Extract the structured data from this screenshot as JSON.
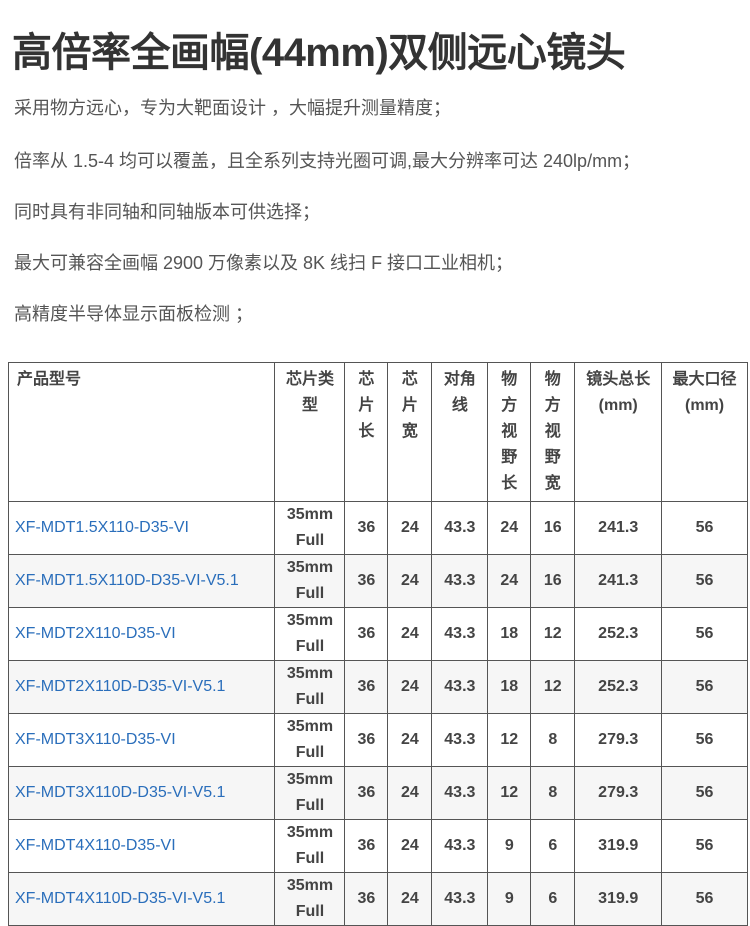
{
  "title": "高倍率全画幅(44mm)双侧远心镜头",
  "features": [
    "采用物方远心，专为大靶面设计 ，大幅提升测量精度；",
    "倍率从 1.5-4 均可以覆盖，且全系列支持光圈可调,最大分辨率可达 240lp/mm；",
    "同时具有非同轴和同轴版本可供选择；",
    "最大可兼容全画幅 2900 万像素以及 8K 线扫 F 接口工业相机；",
    "高精度半导体显示面板检测 ；"
  ],
  "table": {
    "headers": [
      "产品型号",
      "芯片类型",
      "芯片长",
      "芯片宽",
      "对角线",
      "物方视野长",
      "物方视野宽",
      "镜头总长(mm)",
      "最大口径(mm)"
    ],
    "rows": [
      [
        "XF-MDT1.5X110-D35-VI",
        "35mm Full",
        "36",
        "24",
        "43.3",
        "24",
        "16",
        "241.3",
        "56"
      ],
      [
        "XF-MDT1.5X110D-D35-VI-V5.1",
        "35mm Full",
        "36",
        "24",
        "43.3",
        "24",
        "16",
        "241.3",
        "56"
      ],
      [
        "XF-MDT2X110-D35-VI",
        "35mm Full",
        "36",
        "24",
        "43.3",
        "18",
        "12",
        "252.3",
        "56"
      ],
      [
        "XF-MDT2X110D-D35-VI-V5.1",
        "35mm Full",
        "36",
        "24",
        "43.3",
        "18",
        "12",
        "252.3",
        "56"
      ],
      [
        "XF-MDT3X110-D35-VI",
        "35mm Full",
        "36",
        "24",
        "43.3",
        "12",
        "8",
        "279.3",
        "56"
      ],
      [
        "XF-MDT3X110D-D35-VI-V5.1",
        "35mm Full",
        "36",
        "24",
        "43.3",
        "12",
        "8",
        "279.3",
        "56"
      ],
      [
        "XF-MDT4X110-D35-VI",
        "35mm Full",
        "36",
        "24",
        "43.3",
        "9",
        "6",
        "319.9",
        "56"
      ],
      [
        "XF-MDT4X110D-D35-VI-V5.1",
        "35mm Full",
        "36",
        "24",
        "43.3",
        "9",
        "6",
        "319.9",
        "56"
      ]
    ]
  },
  "colors": {
    "link": "#2a6ebb",
    "text": "#333333",
    "alt_row": "#f6f6f6"
  }
}
